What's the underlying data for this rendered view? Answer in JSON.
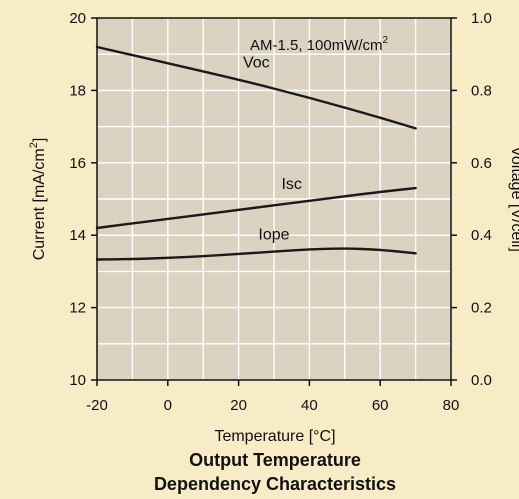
{
  "chart_data": {
    "type": "line",
    "title_lines": [
      "Output Temperature",
      "Dependency Characteristics"
    ],
    "xlabel": "Temperature [°C]",
    "ylabel_left": {
      "text": "Current [mA/cm",
      "sup": "2",
      "tail": "]"
    },
    "ylabel_right": "Voltage [V/cell]",
    "annotation": {
      "text": "AM-1.5, 100mW/cm",
      "sup": "2"
    },
    "xlim": [
      -20,
      80
    ],
    "ylim_left": [
      10,
      20
    ],
    "ylim_right": [
      0.0,
      1.0
    ],
    "x_ticks": [
      "-20",
      "0",
      "20",
      "40",
      "60",
      "80"
    ],
    "y_ticks_left": [
      "10",
      "12",
      "14",
      "16",
      "18",
      "20"
    ],
    "y_ticks_right": [
      "0.0",
      "0.2",
      "0.4",
      "0.6",
      "0.8",
      "1.0"
    ],
    "grid": true,
    "colors": {
      "background": "#f7ecc6",
      "plot_area": "#dbd2c2",
      "grid": "#ffffff",
      "line": "#1a1a1a"
    },
    "series": [
      {
        "name": "Voc",
        "axis": "right",
        "x": [
          -20,
          0,
          20,
          40,
          60,
          70
        ],
        "y": [
          0.92,
          0.875,
          0.83,
          0.78,
          0.725,
          0.695
        ]
      },
      {
        "name": "Isc",
        "axis": "left",
        "x": [
          -20,
          0,
          20,
          40,
          60,
          70
        ],
        "y": [
          14.2,
          14.45,
          14.7,
          14.95,
          15.2,
          15.3
        ]
      },
      {
        "name": "Iope",
        "axis": "left",
        "x": [
          -20,
          -10,
          0,
          10,
          20,
          30,
          40,
          50,
          60,
          70
        ],
        "y": [
          13.33,
          13.34,
          13.37,
          13.42,
          13.48,
          13.55,
          13.61,
          13.64,
          13.6,
          13.5
        ]
      }
    ]
  }
}
